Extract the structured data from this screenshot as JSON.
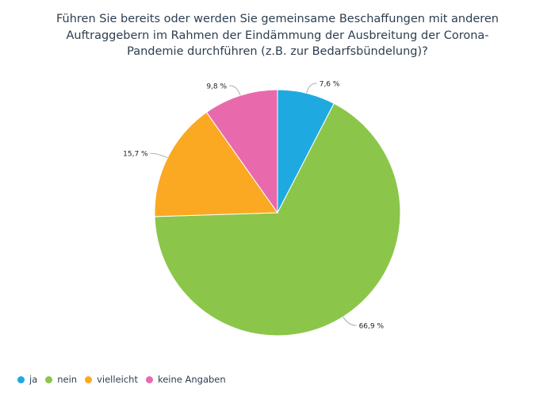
{
  "chart_data": {
    "type": "pie",
    "title_lines": [
      "Führen Sie bereits oder werden Sie gemeinsame Beschaffungen mit anderen",
      "Auftraggebern im Rahmen der Eindämmung der Ausbreitung der Corona-",
      "Pandemie durchführen (z.B. zur Bedarfsbündelung)?"
    ],
    "slices": [
      {
        "name": "ja",
        "value": 7.6,
        "label": "7,6 %",
        "color": "#1fa9e1"
      },
      {
        "name": "nein",
        "value": 66.9,
        "label": "66,9 %",
        "color": "#8bc64a"
      },
      {
        "name": "vielleicht",
        "value": 15.7,
        "label": "15,7 %",
        "color": "#fba823"
      },
      {
        "name": "keine Angaben",
        "value": 9.8,
        "label": "9,8 %",
        "color": "#e86aad"
      }
    ],
    "legend_position": "bottom-left"
  }
}
